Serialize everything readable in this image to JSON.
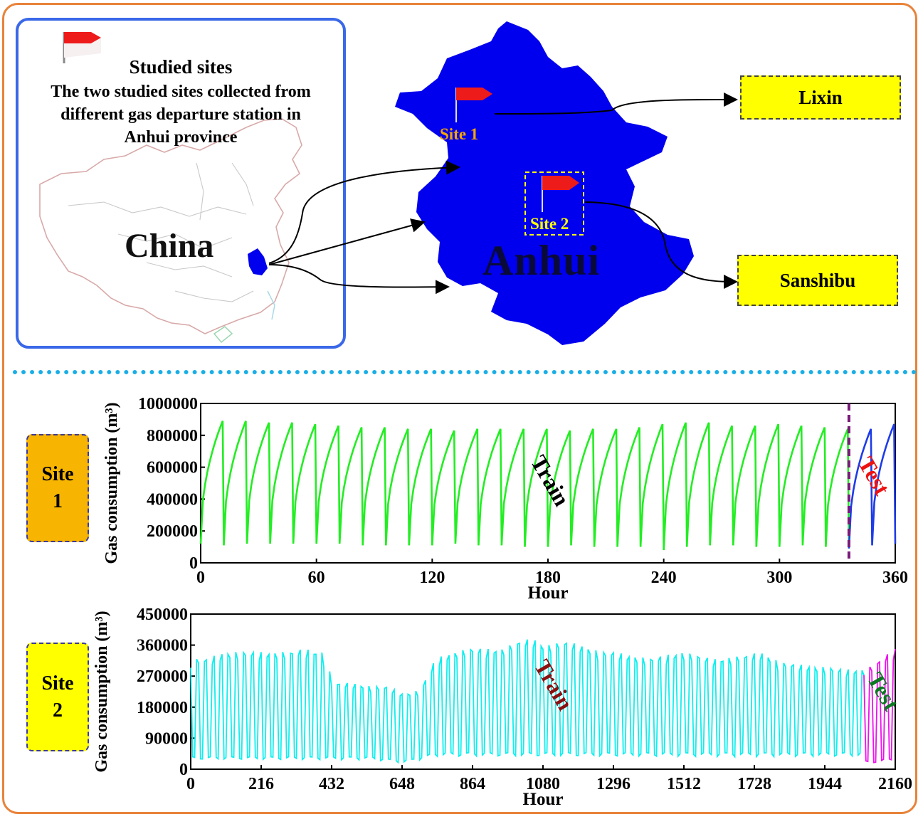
{
  "legend": {
    "title": "Studied sites",
    "description_lines": [
      "The two studied sites collected from",
      "different gas departure station in",
      "Anhui province"
    ]
  },
  "map": {
    "country_label": "China",
    "province_label": "Anhui",
    "site1_label": "Site 1",
    "site2_label": "Site 2"
  },
  "callouts": {
    "site1_name": "Lixin",
    "site2_name": "Sanshibu"
  },
  "colors": {
    "border": "#e8833a",
    "legend_border": "#3a68e8",
    "separator": "#19aee6",
    "province_fill": "#0000ee",
    "callout_fill": "#ffff00",
    "flag": "#ee1b1b",
    "site1_text": "#f5a400",
    "site2_text": "#ffff00",
    "site1_side": "#f7b400",
    "site2_side": "#ffff00"
  },
  "side_labels": {
    "site1_line1": "Site",
    "site1_line2": "1",
    "site2_line1": "Site",
    "site2_line2": "2"
  },
  "chart_data": [
    {
      "type": "line",
      "site": "Site 1",
      "xlabel": "Hour",
      "ylabel": "Gas consumption (m³)",
      "xlim": [
        0,
        360
      ],
      "ylim": [
        0,
        1000000
      ],
      "xticks": [
        "0",
        "60",
        "120",
        "180",
        "240",
        "300",
        "360"
      ],
      "yticks": [
        "0",
        "200000",
        "400000",
        "600000",
        "800000",
        "1000000"
      ],
      "split_x": 336,
      "annotations": [
        "Train",
        "Test"
      ],
      "series": [
        {
          "name": "Train",
          "color": "#22ee22",
          "x": [
            0,
            12,
            24,
            36,
            48,
            60,
            72,
            84,
            96,
            108,
            120,
            132,
            144,
            156,
            168,
            180,
            192,
            204,
            216,
            228,
            240,
            252,
            264,
            276,
            288,
            300,
            312,
            324,
            336
          ],
          "peaks": [
            890000,
            890000,
            880000,
            880000,
            870000,
            860000,
            850000,
            850000,
            840000,
            840000,
            830000,
            840000,
            840000,
            840000,
            840000,
            830000,
            840000,
            840000,
            850000,
            870000,
            880000,
            880000,
            860000,
            860000,
            870000,
            860000,
            850000,
            840000,
            840000
          ],
          "troughs": [
            120000,
            110000,
            120000,
            120000,
            120000,
            120000,
            120000,
            110000,
            110000,
            110000,
            110000,
            120000,
            110000,
            110000,
            100000,
            100000,
            110000,
            100000,
            100000,
            100000,
            80000,
            100000,
            110000,
            110000,
            100000,
            100000,
            110000,
            100000,
            90000
          ]
        },
        {
          "name": "Test",
          "color": "#1e3ce8",
          "x": [
            336,
            348,
            360
          ],
          "peaks": [
            840000,
            870000,
            840000
          ],
          "troughs": [
            90000,
            110000,
            120000
          ]
        }
      ]
    },
    {
      "type": "line",
      "site": "Site 2",
      "xlabel": "Hour",
      "ylabel": "Gas consumption (m³)",
      "xlim": [
        0,
        2160
      ],
      "ylim": [
        0,
        450000
      ],
      "xticks": [
        "0",
        "216",
        "432",
        "648",
        "864",
        "1080",
        "1296",
        "1512",
        "1728",
        "1944",
        "2160"
      ],
      "yticks": [
        "0",
        "90000",
        "180000",
        "270000",
        "360000",
        "450000"
      ],
      "split_x": 2064,
      "annotations": [
        "Train",
        "Test"
      ],
      "series": [
        {
          "name": "Train",
          "color": "#11eeee",
          "envelope_x": [
            0,
            50,
            100,
            150,
            200,
            250,
            300,
            350,
            400,
            432,
            500,
            550,
            600,
            650,
            700,
            750,
            800,
            850,
            900,
            950,
            1000,
            1050,
            1080,
            1150,
            1200,
            1250,
            1300,
            1400,
            1500,
            1600,
            1700,
            1750,
            1800,
            1900,
            2000,
            2064
          ],
          "envelope_high": [
            320000,
            320000,
            340000,
            340000,
            340000,
            340000,
            340000,
            350000,
            340000,
            250000,
            250000,
            240000,
            240000,
            220000,
            230000,
            320000,
            340000,
            350000,
            350000,
            350000,
            370000,
            380000,
            360000,
            370000,
            360000,
            340000,
            340000,
            320000,
            340000,
            320000,
            330000,
            340000,
            310000,
            300000,
            290000,
            290000
          ],
          "envelope_low": [
            30000,
            30000,
            30000,
            30000,
            30000,
            30000,
            30000,
            30000,
            30000,
            30000,
            30000,
            30000,
            25000,
            20000,
            30000,
            40000,
            40000,
            40000,
            40000,
            40000,
            40000,
            40000,
            40000,
            40000,
            40000,
            40000,
            40000,
            40000,
            40000,
            40000,
            40000,
            40000,
            40000,
            40000,
            40000,
            40000
          ]
        },
        {
          "name": "Test",
          "color": "#ee11ee",
          "envelope_x": [
            2064,
            2100,
            2160
          ],
          "envelope_high": [
            290000,
            310000,
            350000
          ],
          "envelope_low": [
            20000,
            20000,
            30000
          ]
        }
      ]
    }
  ]
}
